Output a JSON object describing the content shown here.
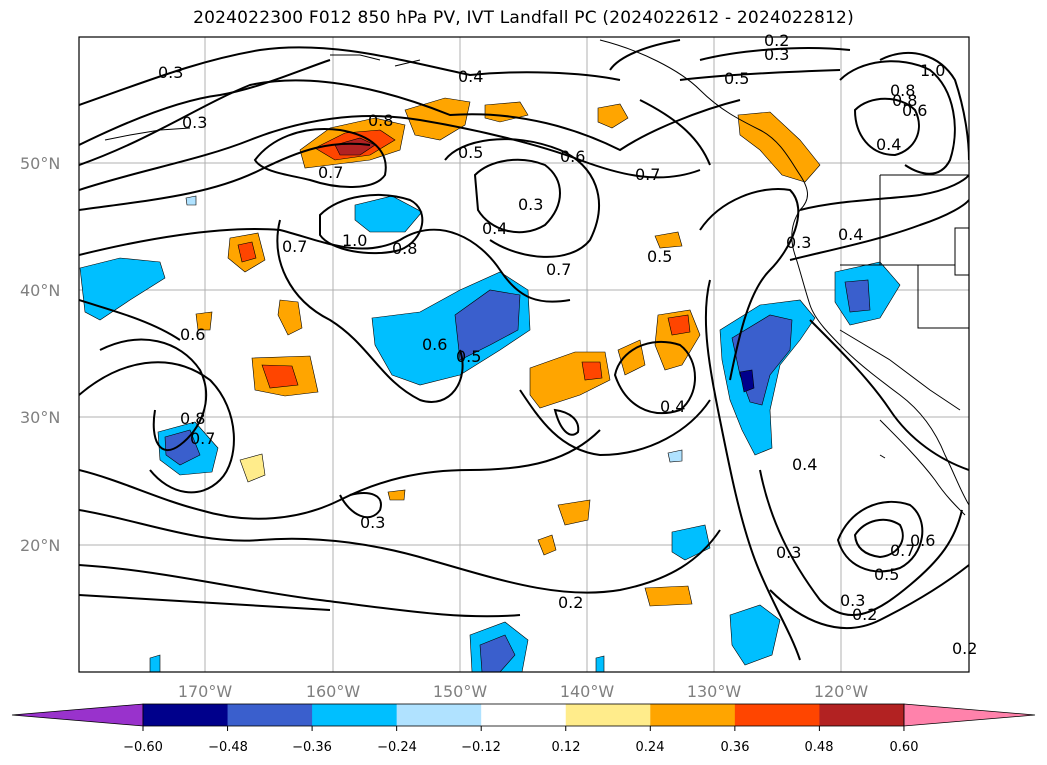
{
  "title": "2024022300 F012 850 hPa PV, IVT Landfall PC (2024022612 - 2024022812)",
  "map": {
    "lat_labels": [
      "50°N",
      "40°N",
      "30°N",
      "20°N"
    ],
    "lon_labels": [
      "170°W",
      "160°W",
      "150°W",
      "140°W",
      "130°W",
      "120°W"
    ],
    "contour_labels": [
      "0.3",
      "0.3",
      "0.4",
      "0.5",
      "0.2",
      "0.3",
      "0.8",
      "0.7",
      "0.5",
      "0.6",
      "0.7",
      "0.3",
      "0.4",
      "1.0",
      "0.8",
      "0.7",
      "0.5",
      "0.7",
      "0.3",
      "0.4",
      "0.6",
      "0.5",
      "0.6",
      "0.8",
      "0.7",
      "0.4",
      "0.4",
      "0.3",
      "0.2",
      "0.3",
      "0.5",
      "0.7",
      "0.6",
      "0.3",
      "0.2",
      "0.2",
      "0.8",
      "0.6",
      "1.0",
      "0.4",
      "0.8"
    ]
  },
  "colorbar": {
    "ticks": [
      "−0.60",
      "−0.48",
      "−0.36",
      "−0.24",
      "−0.12",
      "0.12",
      "0.24",
      "0.36",
      "0.48",
      "0.60"
    ],
    "colors": [
      "#9932cc",
      "#00008b",
      "#3a5fcd",
      "#00bfff",
      "#b0e2ff",
      "#ffffff",
      "#ffec8b",
      "#ffa500",
      "#ff4500",
      "#b22222",
      "#ff82ab"
    ]
  }
}
